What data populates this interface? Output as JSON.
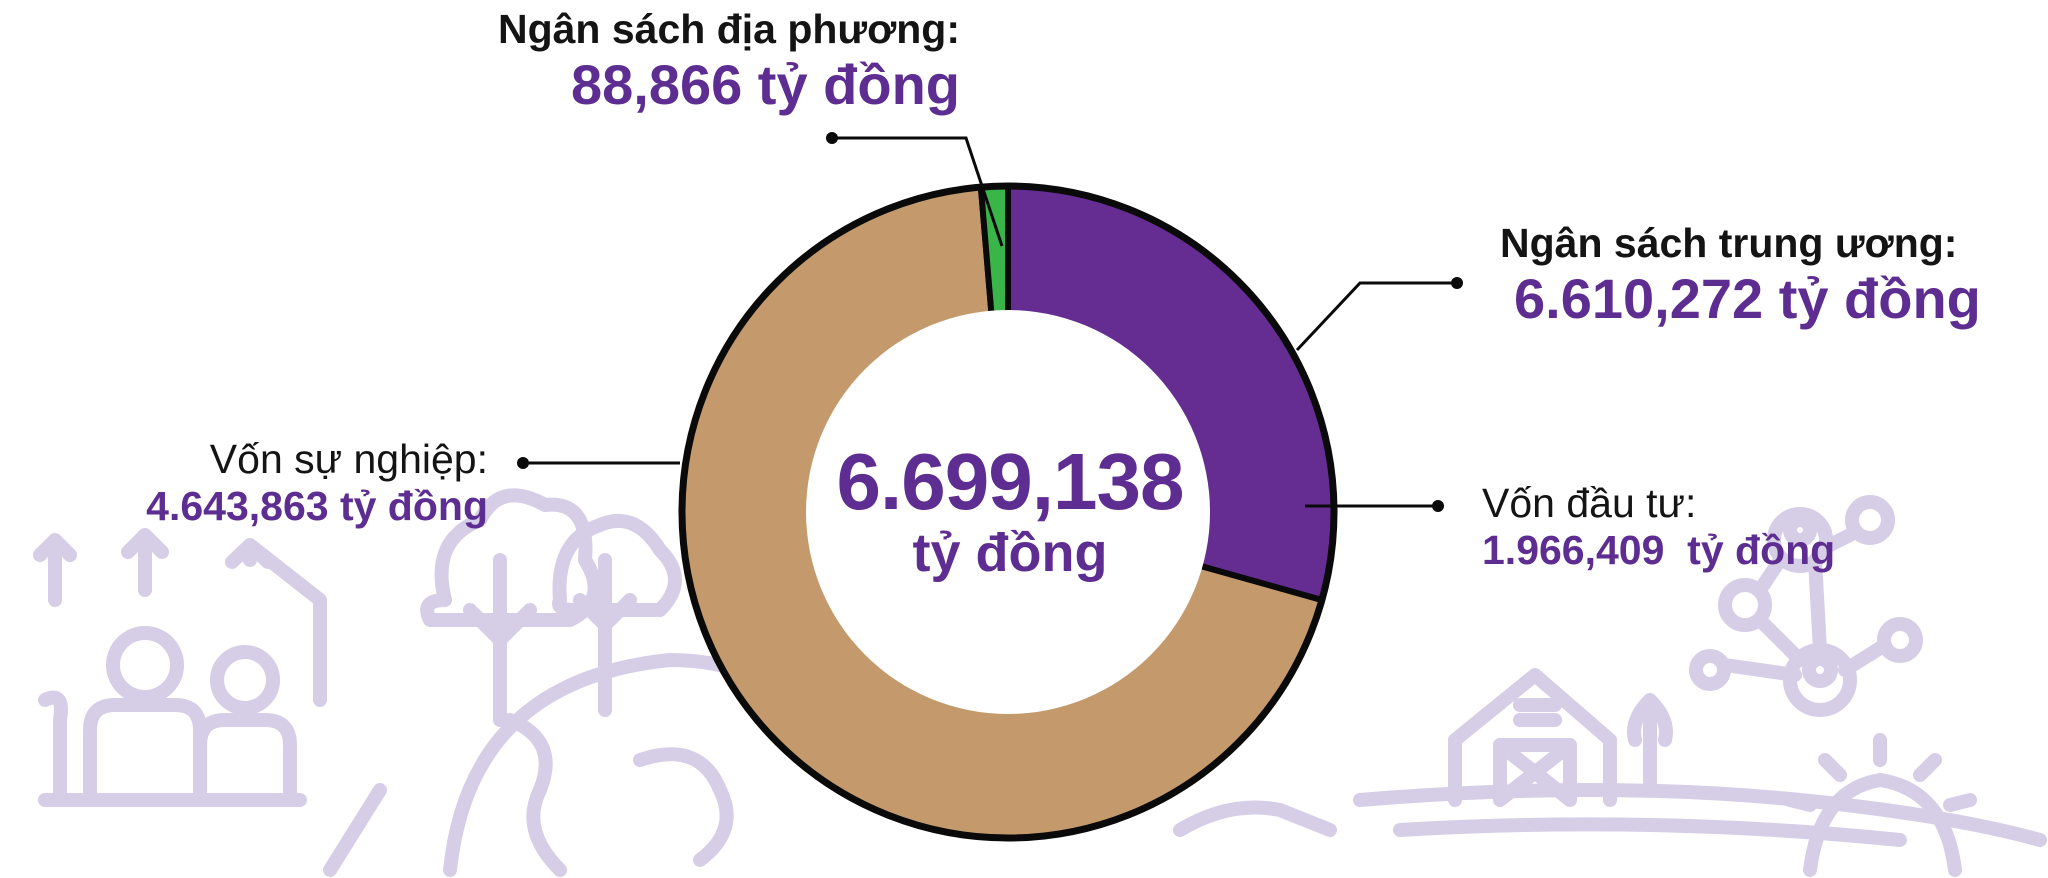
{
  "chart_data": {
    "type": "pie",
    "center_value": "6.699,138",
    "center_unit": "tỷ đồng",
    "colors": {
      "investment": "#652d91",
      "operating": "#c49a6c",
      "local": "#39b54a",
      "outline": "#0a0a0a",
      "value_text": "#5e2d91",
      "background_art": "#d6cde6"
    },
    "slices": [
      {
        "key": "investment",
        "label": "Vốn đầu tư:",
        "value_text": "1.966,409  tỷ đồng",
        "value": 1966.409,
        "color": "#652d91"
      },
      {
        "key": "operating",
        "label": "Vốn sự nghiệp:",
        "value_text": "4.643,863 tỷ đồng",
        "value": 4643.863,
        "color": "#c49a6c"
      },
      {
        "key": "local",
        "label": "Ngân sách địa phương:",
        "value_text": "88,866 tỷ đồng",
        "value": 88.866,
        "color": "#39b54a"
      }
    ],
    "central_budget": {
      "label": "Ngân sách trung ương:",
      "value_text": "6.610,272 tỷ đồng",
      "value": 6610.272
    }
  }
}
